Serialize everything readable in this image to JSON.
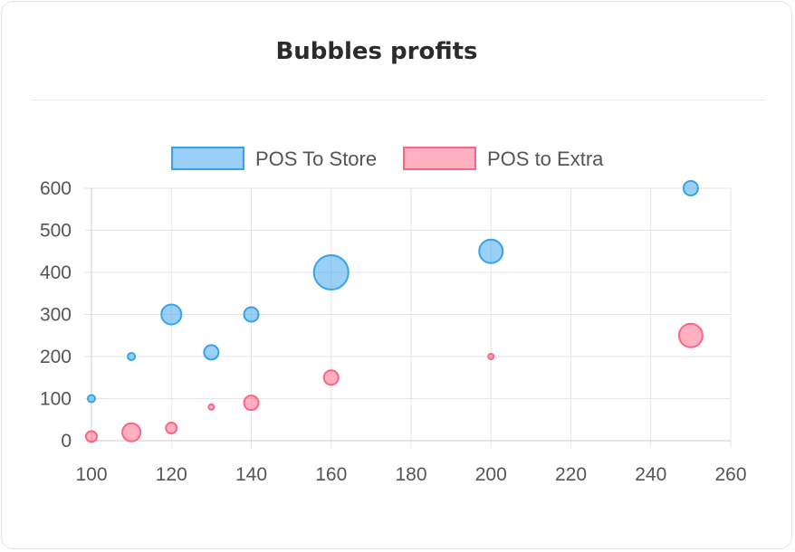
{
  "title": "Bubbles profits",
  "colors": {
    "series_0_fill": "rgba(54,162,235,0.5)",
    "series_0_stroke": "#36a2eb",
    "series_1_fill": "rgba(255,99,132,0.5)",
    "series_1_stroke": "#ff6384",
    "grid": "#e5e5e5"
  },
  "chart_data": {
    "type": "scatter",
    "subtype": "bubble",
    "legend_position": "top",
    "grid": true,
    "xlim": [
      100,
      260
    ],
    "ylim": [
      0,
      600
    ],
    "x_ticks": [
      100,
      120,
      140,
      160,
      180,
      200,
      220,
      240,
      260
    ],
    "y_ticks": [
      0,
      100,
      200,
      300,
      400,
      500,
      600
    ],
    "series": [
      {
        "name": "POS To Store",
        "points": [
          {
            "x": 100,
            "y": 100,
            "r": 4
          },
          {
            "x": 110,
            "y": 200,
            "r": 4
          },
          {
            "x": 120,
            "y": 300,
            "r": 11
          },
          {
            "x": 130,
            "y": 210,
            "r": 8
          },
          {
            "x": 140,
            "y": 300,
            "r": 8
          },
          {
            "x": 160,
            "y": 400,
            "r": 19
          },
          {
            "x": 200,
            "y": 450,
            "r": 13
          },
          {
            "x": 250,
            "y": 600,
            "r": 8
          }
        ]
      },
      {
        "name": "POS to Extra",
        "points": [
          {
            "x": 100,
            "y": 10,
            "r": 6
          },
          {
            "x": 110,
            "y": 20,
            "r": 10
          },
          {
            "x": 120,
            "y": 30,
            "r": 6
          },
          {
            "x": 130,
            "y": 80,
            "r": 3
          },
          {
            "x": 140,
            "y": 90,
            "r": 8
          },
          {
            "x": 160,
            "y": 150,
            "r": 8
          },
          {
            "x": 200,
            "y": 200,
            "r": 3
          },
          {
            "x": 250,
            "y": 250,
            "r": 13
          }
        ]
      }
    ]
  }
}
